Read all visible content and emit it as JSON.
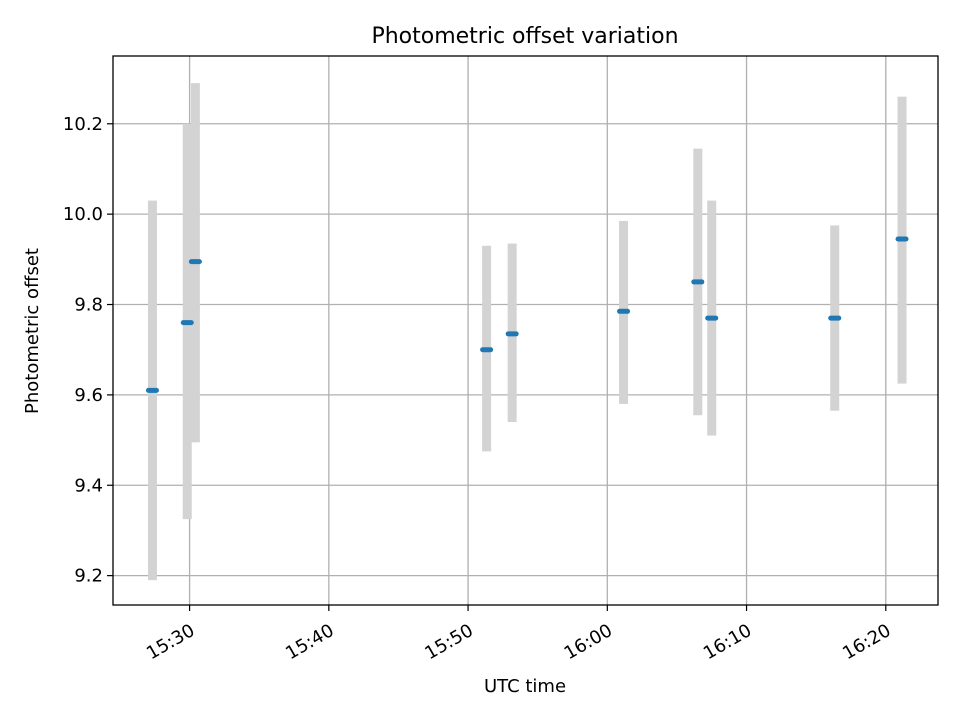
{
  "chart_data": {
    "type": "scatter",
    "title": "Photometric offset variation",
    "xlabel": "UTC time",
    "ylabel": "Photometric offset",
    "xlim": [
      "15:24:30",
      "16:23:45"
    ],
    "ylim": [
      9.135,
      10.35
    ],
    "grid": true,
    "x_ticks": [
      "15:30",
      "15:40",
      "15:50",
      "16:00",
      "16:10",
      "16:20"
    ],
    "y_ticks": [
      "9.2",
      "9.4",
      "9.6",
      "9.8",
      "10.0",
      "10.2"
    ],
    "series": [
      {
        "x": [
          "15:27:20",
          "15:29:50",
          "15:30:25",
          "15:51:20",
          "15:53:10",
          "16:01:10",
          "16:06:30",
          "16:07:30",
          "16:16:20",
          "16:21:10"
        ],
        "y": [
          9.61,
          9.76,
          9.895,
          9.7,
          9.735,
          9.785,
          9.85,
          9.77,
          9.77,
          9.945
        ],
        "err_low": [
          9.19,
          9.325,
          9.495,
          9.475,
          9.54,
          9.58,
          9.555,
          9.51,
          9.565,
          9.625
        ],
        "err_high": [
          10.03,
          10.2,
          10.29,
          9.93,
          9.935,
          9.985,
          10.145,
          10.03,
          9.975,
          10.26
        ]
      }
    ],
    "colors": {
      "marker": "#1f77b4",
      "errorbar": "#d3d3d3",
      "grid": "#b0b0b0",
      "axes": "#000000"
    }
  }
}
